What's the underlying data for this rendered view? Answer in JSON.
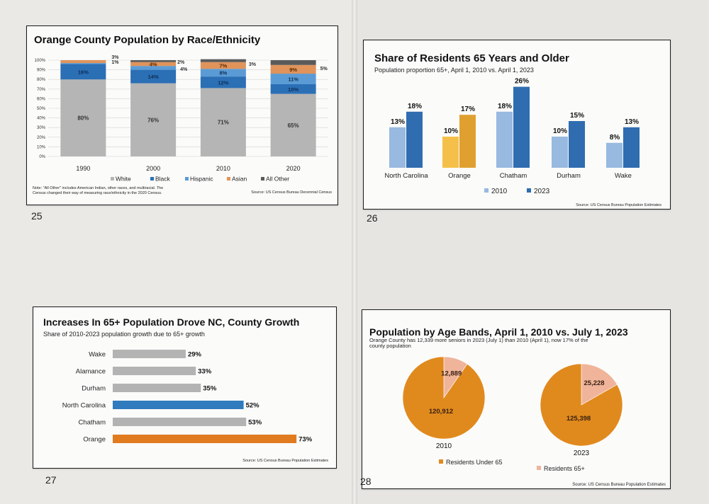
{
  "pages": [
    "25",
    "26",
    "27",
    "28"
  ],
  "charts": {
    "race": {
      "title": "Orange County Population by Race/Ethnicity",
      "note_line1": "Note: \"All Other\" includes American Indian, other races, and multiracial. The",
      "note_line2": "Census changed their way of measuring race/ethnicity in the 2020 Census.",
      "source": "Source: US Census Bureau Decennial Census"
    },
    "seniors": {
      "title": "Share of Residents 65 Years and Older",
      "subtitle": "Population proportion 65+, April 1, 2010 vs. April 1, 2023",
      "source": "Source: US Census Bureau Population Estimates"
    },
    "growth": {
      "title": "Increases In 65+ Population Drove NC, County Growth",
      "subtitle": "Share of 2010-2023 population growth due to 65+ growth",
      "source": "Source: US Census Bureau Population Estimates"
    },
    "ageband": {
      "title": "Population by Age Bands, April 1, 2010 vs. July 1, 2023",
      "subtitle_line1": "Orange County has 12,339 more seniors in 2023 (July 1) than 2010 (April 1), now 17% of the",
      "subtitle_line2": "county population",
      "source": "Source: US Census Bureau Population Estimates"
    }
  },
  "chart_data": [
    {
      "type": "bar",
      "stacked": true,
      "title": "Orange County Population by Race/Ethnicity",
      "categories": [
        "1990",
        "2000",
        "2010",
        "2020"
      ],
      "ylim": [
        0,
        100
      ],
      "yticks": [
        "0%",
        "10%",
        "20%",
        "30%",
        "40%",
        "50%",
        "60%",
        "70%",
        "80%",
        "90%",
        "100%"
      ],
      "series": [
        {
          "name": "White",
          "color": "#b5b5b5",
          "values": [
            80,
            76,
            71,
            65
          ]
        },
        {
          "name": "Black",
          "color": "#2b6fb5",
          "values": [
            16,
            14,
            12,
            10
          ]
        },
        {
          "name": "Hispanic",
          "color": "#5b9bd5",
          "values": [
            1,
            4,
            8,
            11
          ]
        },
        {
          "name": "Asian",
          "color": "#e0935a",
          "values": [
            3,
            4,
            7,
            9
          ]
        },
        {
          "name": "All Other",
          "color": "#5a5a5a",
          "values": [
            0,
            2,
            3,
            5
          ]
        }
      ],
      "labels": [
        [
          "80%",
          "16%",
          "1%",
          "3%",
          ""
        ],
        [
          "76%",
          "14%",
          "4%",
          "4%",
          "2%"
        ],
        [
          "71%",
          "12%",
          "8%",
          "7%",
          "3%"
        ],
        [
          "65%",
          "10%",
          "11%",
          "9%",
          "5%"
        ]
      ],
      "legend": "bottom"
    },
    {
      "type": "bar",
      "title": "Share of Residents 65 Years and Older",
      "subtitle": "Population proportion 65+, April 1, 2010 vs. April 1, 2023",
      "categories": [
        "North Carolina",
        "Orange",
        "Chatham",
        "Durham",
        "Wake"
      ],
      "series": [
        {
          "name": "2010",
          "values": [
            13,
            10,
            18,
            10,
            8
          ]
        },
        {
          "name": "2023",
          "values": [
            18,
            17,
            26,
            15,
            13
          ]
        }
      ],
      "highlight": "Orange",
      "colors": {
        "2010": "#98b9e0",
        "2023": "#2f6db0",
        "orange2010": "#f5c04a",
        "orange2023": "#e0a030"
      },
      "ylim": [
        0,
        30
      ],
      "legend": "bottom"
    },
    {
      "type": "bar",
      "orientation": "horizontal",
      "title": "Increases In 65+ Population Drove NC, County Growth",
      "subtitle": "Share of 2010-2023 population growth due to 65+ growth",
      "categories": [
        "Wake",
        "Alamance",
        "Durham",
        "North Carolina",
        "Chatham",
        "Orange"
      ],
      "values": [
        29,
        33,
        35,
        52,
        53,
        73
      ],
      "labels": [
        "29%",
        "33%",
        "35%",
        "52%",
        "53%",
        "73%"
      ],
      "colors": [
        "#b3b3b3",
        "#b3b3b3",
        "#b3b3b3",
        "#2f7bbd",
        "#b3b3b3",
        "#e07b20"
      ],
      "xlim": [
        0,
        75
      ]
    },
    {
      "type": "pie",
      "title": "Population by Age Bands, April 1, 2010 vs. July 1, 2023",
      "pies": [
        {
          "label": "2010",
          "values": [
            120912,
            12889
          ],
          "value_labels": [
            "120,912",
            "12,889"
          ]
        },
        {
          "label": "2023",
          "values": [
            125398,
            25228
          ],
          "value_labels": [
            "125,398",
            "25,228"
          ]
        }
      ],
      "series_names": [
        "Residents Under 65",
        "Residents 65+"
      ],
      "colors": [
        "#e08a1e",
        "#efb49a"
      ],
      "legend": "bottom"
    }
  ]
}
